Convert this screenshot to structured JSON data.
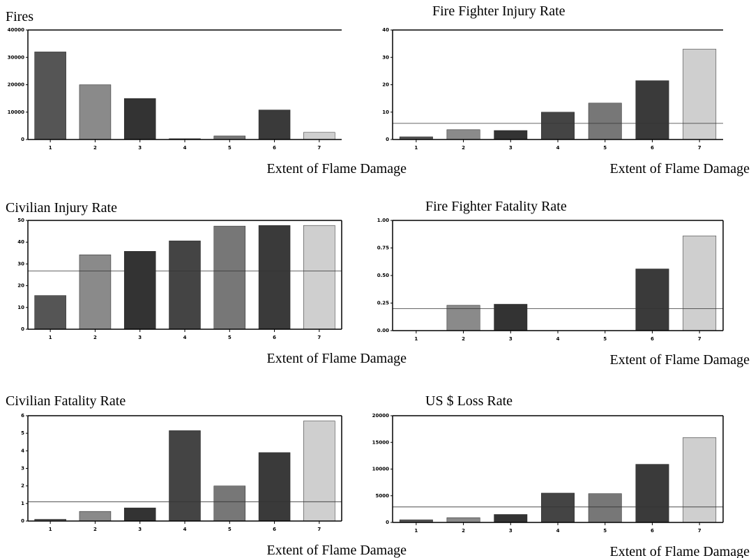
{
  "chart_data": [
    {
      "type": "bar",
      "title": "Fires",
      "x_label": "Extent of Flame Damage",
      "categories": [
        "1",
        "2",
        "3",
        "4",
        "5",
        "6",
        "7"
      ],
      "values": [
        32000,
        20000,
        15000,
        300,
        1300,
        10800,
        2600
      ],
      "colors": [
        "#555555",
        "#8a8a8a",
        "#333333",
        "#444444",
        "#777777",
        "#3a3a3a",
        "#cfcfcf"
      ],
      "ylim": [
        0,
        40000
      ],
      "yticks": [
        0,
        10000,
        20000,
        30000,
        40000
      ]
    },
    {
      "type": "bar",
      "title": "Fire Fighter Injury Rate",
      "x_label": "Extent of Flame Damage",
      "categories": [
        "1",
        "2",
        "3",
        "4",
        "5",
        "6",
        "7"
      ],
      "values": [
        1,
        3.6,
        3.3,
        10,
        13.3,
        21.5,
        33
      ],
      "reference_line": 5.9,
      "colors": [
        "#555555",
        "#8a8a8a",
        "#333333",
        "#444444",
        "#777777",
        "#3a3a3a",
        "#cfcfcf"
      ],
      "ylim": [
        0,
        40
      ],
      "yticks": [
        0,
        10,
        20,
        30,
        40
      ]
    },
    {
      "type": "bar",
      "title": "Civilian Injury Rate",
      "x_label": "Extent of Flame Damage",
      "categories": [
        "1",
        "2",
        "3",
        "4",
        "5",
        "6",
        "7"
      ],
      "values": [
        15.5,
        34.2,
        35.8,
        40.6,
        47.4,
        47.7,
        47.7
      ],
      "reference_line": 26.8,
      "colors": [
        "#555555",
        "#8a8a8a",
        "#333333",
        "#444444",
        "#777777",
        "#3a3a3a",
        "#cfcfcf"
      ],
      "ylim": [
        0,
        50
      ],
      "yticks": [
        0,
        10,
        20,
        30,
        40,
        50
      ]
    },
    {
      "type": "bar",
      "title": "Fire Fighter Fatality Rate",
      "x_label": "Extent of Flame Damage",
      "categories": [
        "1",
        "2",
        "3",
        "4",
        "5",
        "6",
        "7"
      ],
      "values": [
        0,
        0.23,
        0.24,
        0,
        0,
        0.56,
        0.86
      ],
      "reference_line": 0.2,
      "colors": [
        "#555555",
        "#8a8a8a",
        "#333333",
        "#444444",
        "#777777",
        "#3a3a3a",
        "#cfcfcf"
      ],
      "ylim": [
        0,
        1
      ],
      "yticks": [
        {
          "value": 0,
          "label": "0.00"
        },
        {
          "value": 0.25,
          "label": "0.25"
        },
        {
          "value": 0.5,
          "label": "0.50"
        },
        {
          "value": 0.75,
          "label": "0.75"
        },
        {
          "value": 1,
          "label": "1.00"
        }
      ]
    },
    {
      "type": "bar",
      "title": "Civilian Fatality Rate",
      "x_label": "Extent of Flame Damage",
      "categories": [
        "1",
        "2",
        "3",
        "4",
        "5",
        "6",
        "7"
      ],
      "values": [
        0.1,
        0.55,
        0.75,
        5.15,
        2.0,
        3.9,
        5.7
      ],
      "reference_line": 1.1,
      "colors": [
        "#555555",
        "#8a8a8a",
        "#333333",
        "#444444",
        "#777777",
        "#3a3a3a",
        "#cfcfcf"
      ],
      "ylim": [
        0,
        6
      ],
      "yticks": [
        0,
        1,
        2,
        3,
        4,
        5,
        6
      ]
    },
    {
      "type": "bar",
      "title": "US $ Loss Rate",
      "x_label": "Extent of Flame Damage",
      "categories": [
        "1",
        "2",
        "3",
        "4",
        "5",
        "6",
        "7"
      ],
      "values": [
        500,
        900,
        1500,
        5500,
        5400,
        10900,
        15900
      ],
      "reference_line": 2900,
      "colors": [
        "#555555",
        "#8a8a8a",
        "#333333",
        "#444444",
        "#777777",
        "#3a3a3a",
        "#cfcfcf"
      ],
      "ylim": [
        0,
        20000
      ],
      "yticks": [
        0,
        5000,
        10000,
        15000,
        20000
      ]
    }
  ]
}
